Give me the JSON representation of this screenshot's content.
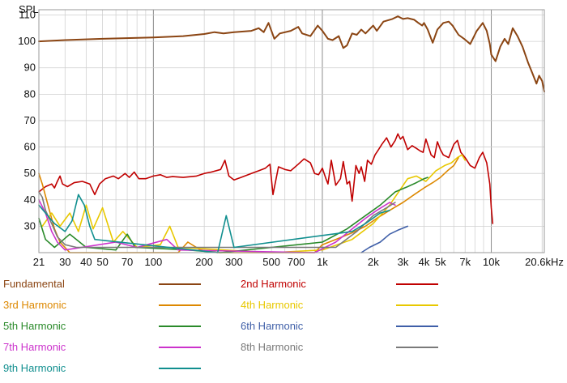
{
  "chart_data": {
    "type": "line",
    "ylabel": "SPL",
    "xscale": "log",
    "xlim": [
      21,
      20600
    ],
    "ylim": [
      20,
      112
    ],
    "x_ticks": [
      {
        "value": 21,
        "label": "21"
      },
      {
        "value": 30,
        "label": "30"
      },
      {
        "value": 40,
        "label": "40"
      },
      {
        "value": 50,
        "label": "50"
      },
      {
        "value": 70,
        "label": "70"
      },
      {
        "value": 100,
        "label": "100"
      },
      {
        "value": 200,
        "label": "200"
      },
      {
        "value": 300,
        "label": "300"
      },
      {
        "value": 500,
        "label": "500"
      },
      {
        "value": 700,
        "label": "700"
      },
      {
        "value": 1000,
        "label": "1k"
      },
      {
        "value": 2000,
        "label": "2k"
      },
      {
        "value": 3000,
        "label": "3k"
      },
      {
        "value": 4000,
        "label": "4k"
      },
      {
        "value": 5000,
        "label": "5k"
      },
      {
        "value": 7000,
        "label": "7k"
      },
      {
        "value": 10000,
        "label": "10k"
      },
      {
        "value": 20600,
        "label": "20.6kHz"
      }
    ],
    "y_ticks": [
      30,
      40,
      50,
      60,
      70,
      80,
      90,
      100,
      110
    ],
    "series": [
      {
        "name": "Fundamental",
        "color": "#8b4513",
        "points": [
          [
            21,
            100
          ],
          [
            30,
            100.5
          ],
          [
            50,
            101
          ],
          [
            100,
            101.5
          ],
          [
            150,
            102
          ],
          [
            200,
            102.8
          ],
          [
            230,
            103.5
          ],
          [
            260,
            103
          ],
          [
            300,
            103.5
          ],
          [
            380,
            104
          ],
          [
            420,
            105
          ],
          [
            450,
            103.5
          ],
          [
            480,
            107
          ],
          [
            520,
            101
          ],
          [
            560,
            103
          ],
          [
            650,
            104
          ],
          [
            720,
            105.5
          ],
          [
            760,
            103
          ],
          [
            850,
            102
          ],
          [
            940,
            106
          ],
          [
            1000,
            104
          ],
          [
            1080,
            101
          ],
          [
            1150,
            100.5
          ],
          [
            1250,
            102
          ],
          [
            1330,
            97.5
          ],
          [
            1400,
            98.5
          ],
          [
            1500,
            103
          ],
          [
            1600,
            102.5
          ],
          [
            1700,
            104.5
          ],
          [
            1800,
            103
          ],
          [
            2000,
            106
          ],
          [
            2100,
            104
          ],
          [
            2300,
            107.5
          ],
          [
            2600,
            108.5
          ],
          [
            2800,
            109.5
          ],
          [
            3000,
            108.5
          ],
          [
            3200,
            108.8
          ],
          [
            3500,
            108.2
          ],
          [
            3700,
            107
          ],
          [
            3900,
            106
          ],
          [
            4000,
            107
          ],
          [
            4200,
            104.5
          ],
          [
            4500,
            99.5
          ],
          [
            4800,
            104.5
          ],
          [
            5200,
            107
          ],
          [
            5600,
            107.5
          ],
          [
            5900,
            106
          ],
          [
            6400,
            102.5
          ],
          [
            6900,
            101
          ],
          [
            7500,
            99
          ],
          [
            8200,
            104
          ],
          [
            8900,
            107
          ],
          [
            9400,
            104
          ],
          [
            9800,
            99
          ],
          [
            10000,
            95
          ],
          [
            10600,
            92.5
          ],
          [
            11300,
            98
          ],
          [
            12000,
            101
          ],
          [
            12600,
            99
          ],
          [
            13400,
            105
          ],
          [
            14300,
            102
          ],
          [
            15300,
            98
          ],
          [
            16500,
            92
          ],
          [
            17500,
            88
          ],
          [
            18500,
            84
          ],
          [
            19200,
            87
          ],
          [
            20000,
            85
          ],
          [
            20600,
            81
          ]
        ]
      },
      {
        "name": "2nd Harmonic",
        "color": "#c00000",
        "points": [
          [
            21,
            43
          ],
          [
            23,
            45
          ],
          [
            25,
            46
          ],
          [
            26,
            44.5
          ],
          [
            27,
            47
          ],
          [
            28,
            49
          ],
          [
            29,
            46
          ],
          [
            31,
            45
          ],
          [
            34,
            46.5
          ],
          [
            38,
            47
          ],
          [
            42,
            46
          ],
          [
            45,
            42
          ],
          [
            48,
            46
          ],
          [
            52,
            48
          ],
          [
            58,
            49
          ],
          [
            62,
            48
          ],
          [
            68,
            50
          ],
          [
            72,
            48.5
          ],
          [
            77,
            50.5
          ],
          [
            82,
            48
          ],
          [
            90,
            48
          ],
          [
            100,
            49
          ],
          [
            110,
            49.5
          ],
          [
            120,
            48.5
          ],
          [
            130,
            48.8
          ],
          [
            150,
            48.5
          ],
          [
            180,
            49
          ],
          [
            200,
            50
          ],
          [
            220,
            50.5
          ],
          [
            250,
            51.5
          ],
          [
            265,
            55
          ],
          [
            280,
            49
          ],
          [
            300,
            47.5
          ],
          [
            330,
            48.5
          ],
          [
            380,
            50
          ],
          [
            420,
            51
          ],
          [
            460,
            52
          ],
          [
            490,
            53.5
          ],
          [
            510,
            42
          ],
          [
            550,
            52.5
          ],
          [
            600,
            51.5
          ],
          [
            650,
            51
          ],
          [
            720,
            53.5
          ],
          [
            780,
            55.5
          ],
          [
            850,
            54
          ],
          [
            900,
            50
          ],
          [
            950,
            49.5
          ],
          [
            1000,
            52
          ],
          [
            1050,
            48
          ],
          [
            1080,
            46
          ],
          [
            1130,
            55
          ],
          [
            1200,
            45.5
          ],
          [
            1280,
            48
          ],
          [
            1330,
            54.5
          ],
          [
            1400,
            46
          ],
          [
            1450,
            47
          ],
          [
            1500,
            39.5
          ],
          [
            1580,
            53
          ],
          [
            1650,
            50
          ],
          [
            1700,
            52.5
          ],
          [
            1780,
            47
          ],
          [
            1850,
            55
          ],
          [
            1950,
            53.5
          ],
          [
            2050,
            57
          ],
          [
            2150,
            59
          ],
          [
            2250,
            61
          ],
          [
            2400,
            63.5
          ],
          [
            2550,
            60
          ],
          [
            2700,
            62.5
          ],
          [
            2800,
            65
          ],
          [
            2900,
            63
          ],
          [
            3000,
            64
          ],
          [
            3200,
            59
          ],
          [
            3400,
            60.5
          ],
          [
            3600,
            59.5
          ],
          [
            3800,
            58.5
          ],
          [
            3950,
            58
          ],
          [
            4100,
            63
          ],
          [
            4400,
            57
          ],
          [
            4600,
            56
          ],
          [
            4800,
            62
          ],
          [
            5000,
            59
          ],
          [
            5200,
            57
          ],
          [
            5600,
            56
          ],
          [
            6000,
            61
          ],
          [
            6300,
            62.5
          ],
          [
            6600,
            58
          ],
          [
            7000,
            56
          ],
          [
            7500,
            53
          ],
          [
            8000,
            52
          ],
          [
            8500,
            56
          ],
          [
            8900,
            58
          ],
          [
            9400,
            54
          ],
          [
            9800,
            46
          ],
          [
            10000,
            37
          ],
          [
            10200,
            31
          ]
        ]
      },
      {
        "name": "3rd Harmonic",
        "color": "#dd8800",
        "points": [
          [
            21,
            50
          ],
          [
            22,
            46
          ],
          [
            24,
            37
          ],
          [
            26,
            29
          ],
          [
            28,
            24
          ],
          [
            32,
            20
          ],
          [
            140,
            20
          ],
          [
            160,
            24
          ],
          [
            190,
            21
          ],
          [
            240,
            20
          ],
          [
            900,
            20
          ],
          [
            1000,
            23
          ],
          [
            1200,
            25
          ],
          [
            1500,
            27.5
          ],
          [
            1800,
            30
          ],
          [
            2100,
            33
          ],
          [
            2500,
            36
          ],
          [
            3000,
            39
          ],
          [
            3500,
            42
          ],
          [
            4000,
            44.5
          ],
          [
            4500,
            46.5
          ],
          [
            5000,
            48.5
          ],
          [
            5500,
            51
          ],
          [
            6000,
            53
          ],
          [
            6400,
            56
          ]
        ]
      },
      {
        "name": "4th Harmonic",
        "color": "#e8c800",
        "points": [
          [
            22,
            30
          ],
          [
            25,
            35
          ],
          [
            28,
            30
          ],
          [
            32,
            35
          ],
          [
            36,
            28
          ],
          [
            40,
            38
          ],
          [
            44,
            29
          ],
          [
            50,
            37
          ],
          [
            58,
            24
          ],
          [
            66,
            28
          ],
          [
            80,
            22
          ],
          [
            110,
            23
          ],
          [
            125,
            30
          ],
          [
            140,
            22
          ],
          [
            500,
            20
          ],
          [
            1000,
            21
          ],
          [
            1500,
            25
          ],
          [
            2000,
            31
          ],
          [
            2500,
            38
          ],
          [
            2900,
            44
          ],
          [
            3200,
            48
          ],
          [
            3600,
            49
          ],
          [
            4100,
            47
          ],
          [
            4700,
            51
          ],
          [
            5300,
            53
          ],
          [
            5800,
            54
          ],
          [
            6300,
            56
          ],
          [
            6700,
            57
          ],
          [
            7000,
            55
          ]
        ]
      },
      {
        "name": "5th Harmonic",
        "color": "#2a8a2a",
        "points": [
          [
            21,
            33
          ],
          [
            23,
            25
          ],
          [
            26,
            22
          ],
          [
            32,
            27
          ],
          [
            40,
            22
          ],
          [
            60,
            21
          ],
          [
            70,
            27
          ],
          [
            78,
            22
          ],
          [
            160,
            21
          ],
          [
            250,
            20
          ],
          [
            1000,
            24
          ],
          [
            1400,
            29
          ],
          [
            1800,
            34
          ],
          [
            2200,
            38
          ],
          [
            2700,
            43
          ],
          [
            3200,
            45
          ],
          [
            3600,
            46.5
          ],
          [
            4000,
            48
          ],
          [
            4200,
            48.5
          ]
        ]
      },
      {
        "name": "6th Harmonic",
        "color": "#3f5fa8",
        "points": [
          [
            1700,
            20
          ],
          [
            1900,
            22
          ],
          [
            2200,
            24
          ],
          [
            2500,
            27
          ],
          [
            2800,
            28.5
          ],
          [
            3200,
            30
          ]
        ]
      },
      {
        "name": "7th Harmonic",
        "color": "#cc33cc",
        "points": [
          [
            21,
            40
          ],
          [
            23,
            35
          ],
          [
            25,
            28
          ],
          [
            27,
            24
          ],
          [
            30,
            21
          ],
          [
            60,
            24
          ],
          [
            80,
            22
          ],
          [
            120,
            25
          ],
          [
            140,
            21
          ],
          [
            900,
            20
          ],
          [
            1200,
            24
          ],
          [
            1500,
            29
          ],
          [
            1800,
            33
          ],
          [
            2100,
            36
          ],
          [
            2500,
            39
          ],
          [
            2700,
            38
          ]
        ]
      },
      {
        "name": "8th Harmonic",
        "color": "#7a7a7a",
        "points": [
          [
            21,
            43
          ],
          [
            22,
            41
          ],
          [
            23,
            36
          ],
          [
            25,
            31
          ],
          [
            27,
            26
          ],
          [
            30,
            23
          ],
          [
            35,
            22
          ],
          [
            1200,
            22
          ],
          [
            1600,
            28
          ],
          [
            2000,
            34
          ],
          [
            2400,
            37
          ],
          [
            2700,
            39
          ]
        ]
      },
      {
        "name": "9th Harmonic",
        "color": "#118f8f",
        "points": [
          [
            21,
            38
          ],
          [
            23,
            35
          ],
          [
            26,
            31
          ],
          [
            30,
            28
          ],
          [
            33,
            32
          ],
          [
            36,
            42
          ],
          [
            39,
            38
          ],
          [
            42,
            30
          ],
          [
            45,
            25
          ],
          [
            240,
            20
          ],
          [
            270,
            34
          ],
          [
            300,
            22
          ],
          [
            1500,
            28
          ],
          [
            1800,
            31
          ],
          [
            2200,
            35
          ],
          [
            2500,
            36
          ]
        ]
      }
    ],
    "grid": true,
    "legend_position": "bottom"
  }
}
